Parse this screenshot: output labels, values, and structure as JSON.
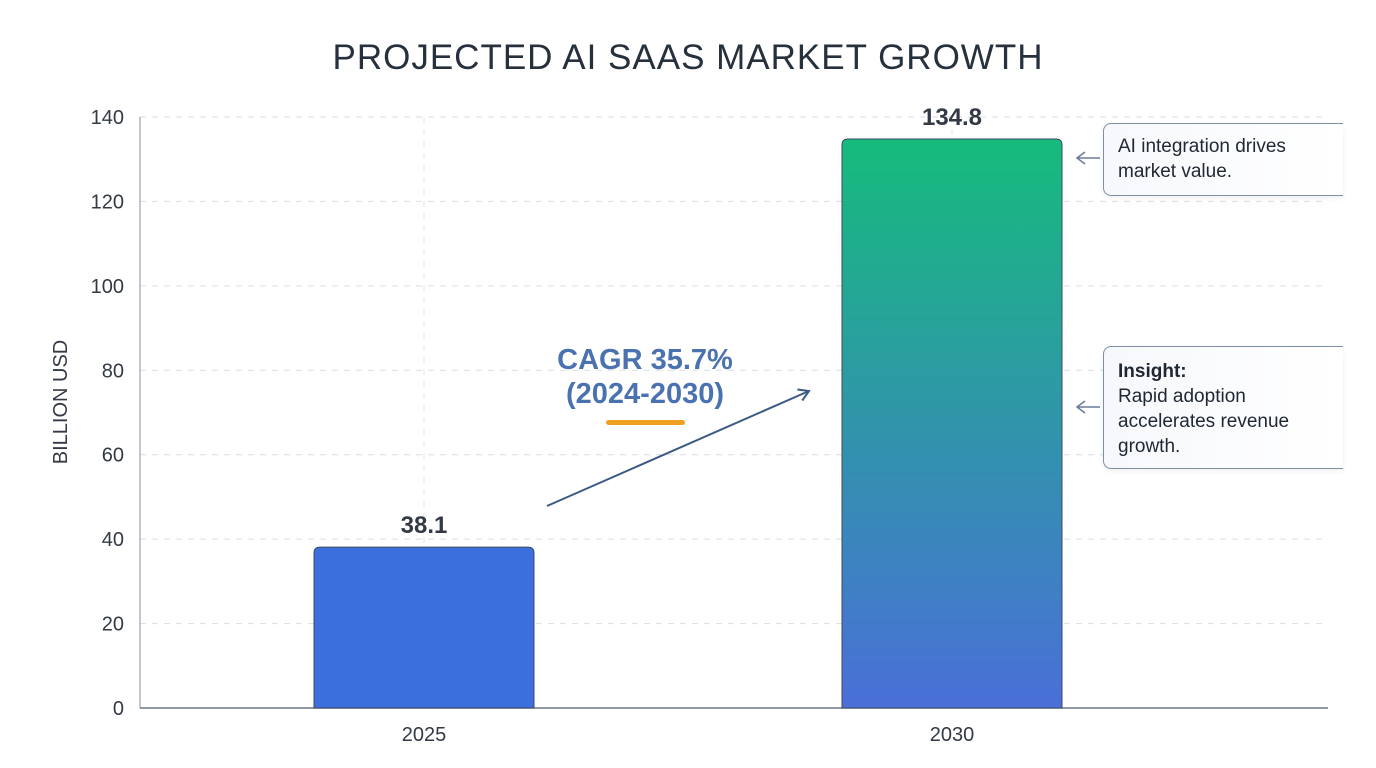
{
  "chart_data": {
    "type": "bar",
    "title": "PROJECTED AI SAAS MARKET GROWTH",
    "xlabel": "",
    "ylabel": "BILLION USD",
    "categories": [
      "2025",
      "2030"
    ],
    "values": [
      38.1,
      134.8
    ],
    "data_labels": [
      "38.1",
      "134.8"
    ],
    "ylim": [
      0,
      140
    ],
    "yticks": [
      0,
      20,
      40,
      60,
      80,
      100,
      120,
      140
    ],
    "grid": true,
    "colors": {
      "bar_2025": "#3a6fdd",
      "bar_2030_top": "#16bb7c",
      "bar_2030_bottom": "#4a6fd8",
      "accent": "#f0a020",
      "cagr_text": "#4a72b0"
    },
    "annotations": {
      "cagr_line1": "CAGR 35.7%",
      "cagr_line2": "(2024-2030)",
      "callout_top": "AI integration drives market value.",
      "callout_insight_title": "Insight:",
      "callout_insight_body": "Rapid adoption accelerates revenue growth."
    }
  }
}
